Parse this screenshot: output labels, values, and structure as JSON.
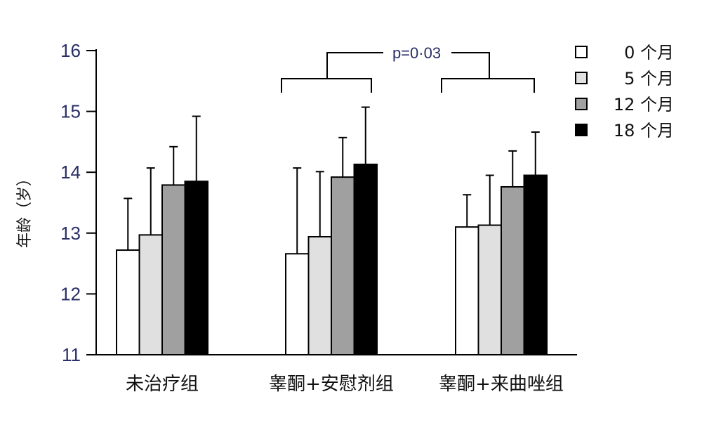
{
  "chart_data": {
    "type": "bar",
    "title": "",
    "xlabel": "",
    "ylabel": "年龄（岁）",
    "ylim": [
      11,
      16
    ],
    "yticks": [
      11,
      12,
      13,
      14,
      15,
      16
    ],
    "grid": false,
    "legend_position": "top-right",
    "categories": [
      "未治疗组",
      "睾酮+安慰剂组",
      "睾酮+来曲唑组"
    ],
    "series": [
      {
        "name": "0 个月",
        "color": "#ffffff",
        "values": [
          12.72,
          12.66,
          13.1
        ],
        "errors": [
          0.85,
          1.41,
          0.53
        ]
      },
      {
        "name": "5 个月",
        "color": "#e0e0e0",
        "values": [
          12.97,
          12.94,
          13.13
        ],
        "errors": [
          1.1,
          1.07,
          0.82
        ]
      },
      {
        "name": "12 个月",
        "color": "#a0a0a0",
        "values": [
          13.79,
          13.92,
          13.76
        ],
        "errors": [
          0.63,
          0.65,
          0.59
        ]
      },
      {
        "name": "18 个月",
        "color": "#000000",
        "values": [
          13.85,
          14.13,
          13.95
        ],
        "errors": [
          1.07,
          0.94,
          0.71
        ]
      }
    ],
    "annotations": [
      {
        "text": "p=0·03",
        "from_category": 1,
        "to_category": 2
      }
    ]
  }
}
